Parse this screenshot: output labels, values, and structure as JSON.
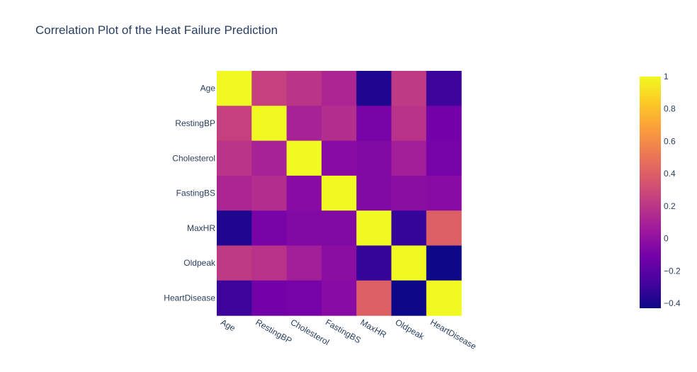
{
  "chart_data": {
    "type": "heatmap",
    "title": "Correlation Plot of the Heat Failure Prediction",
    "x": [
      "Age",
      "RestingBP",
      "Cholesterol",
      "FastingBS",
      "MaxHR",
      "Oldpeak",
      "HeartDisease"
    ],
    "y": [
      "Age",
      "RestingBP",
      "Cholesterol",
      "FastingBS",
      "MaxHR",
      "Oldpeak",
      "HeartDisease"
    ],
    "z": [
      [
        1.0,
        0.25,
        0.19,
        0.12,
        -0.38,
        0.22,
        -0.3
      ],
      [
        0.25,
        1.0,
        0.1,
        0.16,
        -0.09,
        0.18,
        -0.11
      ],
      [
        0.19,
        0.1,
        1.0,
        -0.03,
        -0.05,
        0.08,
        -0.1
      ],
      [
        0.12,
        0.16,
        -0.03,
        1.0,
        -0.05,
        -0.02,
        -0.03
      ],
      [
        -0.38,
        -0.09,
        -0.05,
        -0.05,
        1.0,
        -0.32,
        0.4
      ],
      [
        0.22,
        0.18,
        0.08,
        -0.02,
        -0.32,
        1.0,
        -0.43
      ],
      [
        -0.3,
        -0.11,
        -0.1,
        -0.03,
        0.4,
        -0.43,
        1.0
      ]
    ],
    "zmin": -0.43,
    "zmax": 1.0,
    "colorscale": [
      "#0d0887",
      "#46039f",
      "#7201a8",
      "#9c179e",
      "#bd3786",
      "#d8576b",
      "#ed7953",
      "#fb9f3a",
      "#fdca26",
      "#f0f921"
    ],
    "colorbar_ticks": [
      "1",
      "0.8",
      "0.6",
      "0.4",
      "0.2",
      "0",
      "−0.2",
      "−0.4"
    ],
    "colorbar_tick_values": [
      1,
      0.8,
      0.6,
      0.4,
      0.2,
      0,
      -0.2,
      -0.4
    ],
    "grid": false,
    "legend": "colorbar right"
  }
}
